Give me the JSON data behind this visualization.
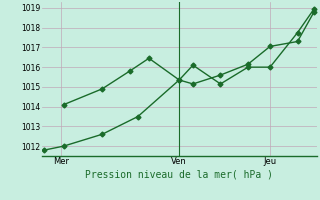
{
  "title": "",
  "xlabel": "Pression niveau de la mer( hPa )",
  "background_color": "#c8eee0",
  "grid_color": "#c0a8b8",
  "line_color": "#1a6b2a",
  "ylim": [
    1011.5,
    1019.3
  ],
  "xlim": [
    0.0,
    10.0
  ],
  "yticks": [
    1012,
    1013,
    1014,
    1015,
    1016,
    1017,
    1018,
    1019
  ],
  "xtick_positions": [
    0.7,
    5.0,
    8.3
  ],
  "xtick_labels": [
    "Mer",
    "Ven",
    "Jeu"
  ],
  "vline_x": 5.0,
  "line1_x": [
    0.1,
    0.8,
    2.2,
    3.5,
    5.0,
    5.5,
    6.5,
    7.5,
    8.3,
    9.3,
    9.9
  ],
  "line1_y": [
    1011.8,
    1012.0,
    1012.6,
    1013.5,
    1015.35,
    1015.15,
    1015.6,
    1016.15,
    1017.05,
    1017.3,
    1018.8
  ],
  "line2_x": [
    0.8,
    2.2,
    3.2,
    3.9,
    5.0,
    5.5,
    6.5,
    7.5,
    8.3,
    9.3,
    9.9
  ],
  "line2_y": [
    1014.1,
    1014.9,
    1015.8,
    1016.45,
    1015.35,
    1016.1,
    1015.15,
    1016.0,
    1016.0,
    1017.75,
    1018.95
  ],
  "marker": "D",
  "markersize": 2.5,
  "linewidth": 1.0,
  "ytick_fontsize": 5.5,
  "xtick_fontsize": 6.0,
  "xlabel_fontsize": 7.0
}
